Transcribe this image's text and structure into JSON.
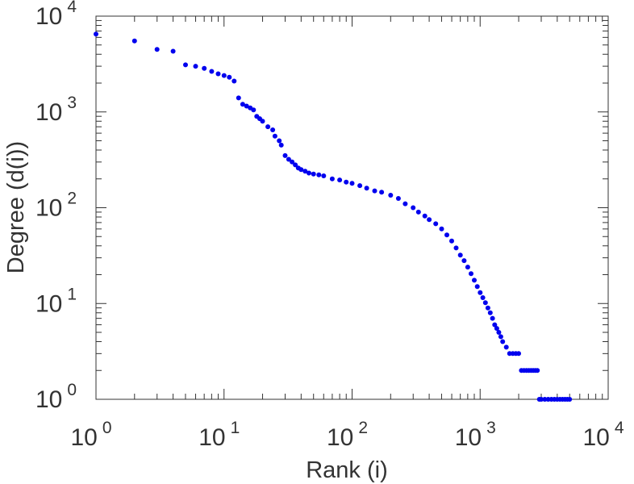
{
  "chart_data": {
    "type": "scatter",
    "xlabel": "Rank (i)",
    "ylabel": "Degree (d(i))",
    "xscale": "log",
    "yscale": "log",
    "xlim": [
      1,
      10000
    ],
    "ylim": [
      1,
      10000
    ],
    "x_ticks": [
      {
        "value": 1,
        "base": "10",
        "exp": "0"
      },
      {
        "value": 10,
        "base": "10",
        "exp": "1"
      },
      {
        "value": 100,
        "base": "10",
        "exp": "2"
      },
      {
        "value": 1000,
        "base": "10",
        "exp": "3"
      },
      {
        "value": 10000,
        "base": "10",
        "exp": "4"
      }
    ],
    "y_ticks": [
      {
        "value": 1,
        "base": "10",
        "exp": "0"
      },
      {
        "value": 10,
        "base": "10",
        "exp": "1"
      },
      {
        "value": 100,
        "base": "10",
        "exp": "2"
      },
      {
        "value": 1000,
        "base": "10",
        "exp": "3"
      },
      {
        "value": 10000,
        "base": "10",
        "exp": "4"
      }
    ],
    "grid": false,
    "marker_color": "#0000ee",
    "series": [
      {
        "x": [
          1,
          2,
          3,
          4,
          5,
          6,
          7,
          8,
          9,
          10,
          11,
          12,
          13,
          14,
          15,
          16,
          17,
          18,
          19,
          20,
          22,
          24,
          25,
          27,
          28,
          30,
          32,
          34,
          36,
          38,
          40,
          43,
          46,
          50,
          55,
          60,
          70,
          80,
          90,
          100,
          115,
          130,
          150,
          170,
          200,
          230,
          260,
          300,
          330,
          370,
          400,
          450,
          500,
          550,
          600,
          650,
          700,
          750,
          800,
          850,
          900,
          950,
          1000,
          1050,
          1100,
          1150,
          1200,
          1250,
          1300,
          1350,
          1400,
          1450,
          1500,
          1600,
          1700,
          1800,
          1900,
          2000,
          2100,
          2200,
          2300,
          2400,
          2500,
          2600,
          2700,
          2800,
          2900,
          3000,
          3200,
          3400,
          3600,
          3800,
          4000,
          4200,
          4400,
          4600,
          4800,
          5000
        ],
        "y": [
          6500,
          5500,
          4500,
          4300,
          3100,
          3000,
          2850,
          2650,
          2500,
          2400,
          2300,
          2100,
          1400,
          1200,
          1150,
          1100,
          1050,
          900,
          850,
          800,
          700,
          650,
          560,
          500,
          450,
          350,
          320,
          300,
          280,
          260,
          250,
          240,
          230,
          225,
          220,
          215,
          200,
          195,
          185,
          180,
          170,
          160,
          150,
          145,
          135,
          125,
          110,
          100,
          90,
          82,
          75,
          68,
          60,
          52,
          45,
          38,
          32,
          28,
          24,
          20.5,
          17.5,
          15,
          13,
          11.5,
          10.2,
          9,
          8,
          7,
          6,
          5.5,
          5,
          4.5,
          4,
          3.5,
          3,
          3,
          3,
          3,
          2,
          2,
          2,
          2,
          2,
          2,
          2,
          2,
          1,
          1,
          1,
          1,
          1,
          1,
          1,
          1,
          1,
          1,
          1,
          1
        ]
      }
    ]
  }
}
